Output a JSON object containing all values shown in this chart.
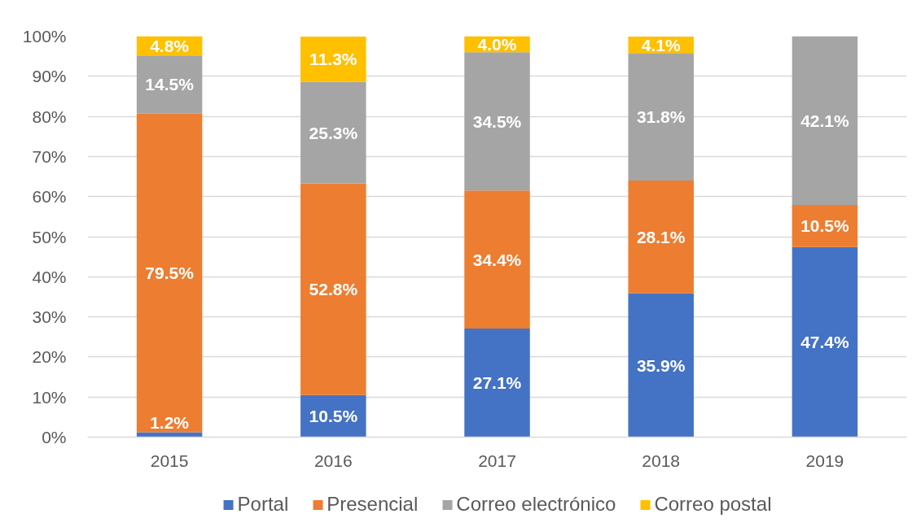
{
  "chart_data": {
    "type": "bar",
    "stacked": true,
    "categories": [
      "2015",
      "2016",
      "2017",
      "2018",
      "2019"
    ],
    "series": [
      {
        "name": "Portal",
        "color": "#4472c4",
        "values": [
          1.2,
          10.5,
          27.1,
          35.9,
          47.4
        ],
        "value_labels": [
          "1.2%",
          "10.5%",
          "27.1%",
          "35.9%",
          "47.4%"
        ]
      },
      {
        "name": "Presencial",
        "color": "#ed7d31",
        "values": [
          79.5,
          52.8,
          34.4,
          28.1,
          10.5
        ],
        "value_labels": [
          "79.5%",
          "52.8%",
          "34.4%",
          "28.1%",
          "10.5%"
        ]
      },
      {
        "name": "Correo electrónico",
        "color": "#a5a5a5",
        "values": [
          14.5,
          25.3,
          34.5,
          31.8,
          42.1
        ],
        "value_labels": [
          "14.5%",
          "25.3%",
          "34.5%",
          "31.8%",
          "42.1%"
        ]
      },
      {
        "name": "Correo postal",
        "color": "#ffc000",
        "values": [
          4.8,
          11.3,
          4.0,
          4.1,
          null
        ],
        "value_labels": [
          "4.8%",
          "11.3%",
          "4.0%",
          "4.1%",
          null
        ]
      }
    ],
    "ylim": [
      0,
      100
    ],
    "yticks": [
      {
        "value": 0,
        "label": "0%"
      },
      {
        "value": 10,
        "label": "10%"
      },
      {
        "value": 20,
        "label": "20%"
      },
      {
        "value": 30,
        "label": "30%"
      },
      {
        "value": 40,
        "label": "40%"
      },
      {
        "value": 50,
        "label": "50%"
      },
      {
        "value": 60,
        "label": "60%"
      },
      {
        "value": 70,
        "label": "70%"
      },
      {
        "value": 80,
        "label": "80%"
      },
      {
        "value": 90,
        "label": "90%"
      },
      {
        "value": 100,
        "label": "100%"
      }
    ],
    "grid": "y",
    "legend": "bottom"
  }
}
